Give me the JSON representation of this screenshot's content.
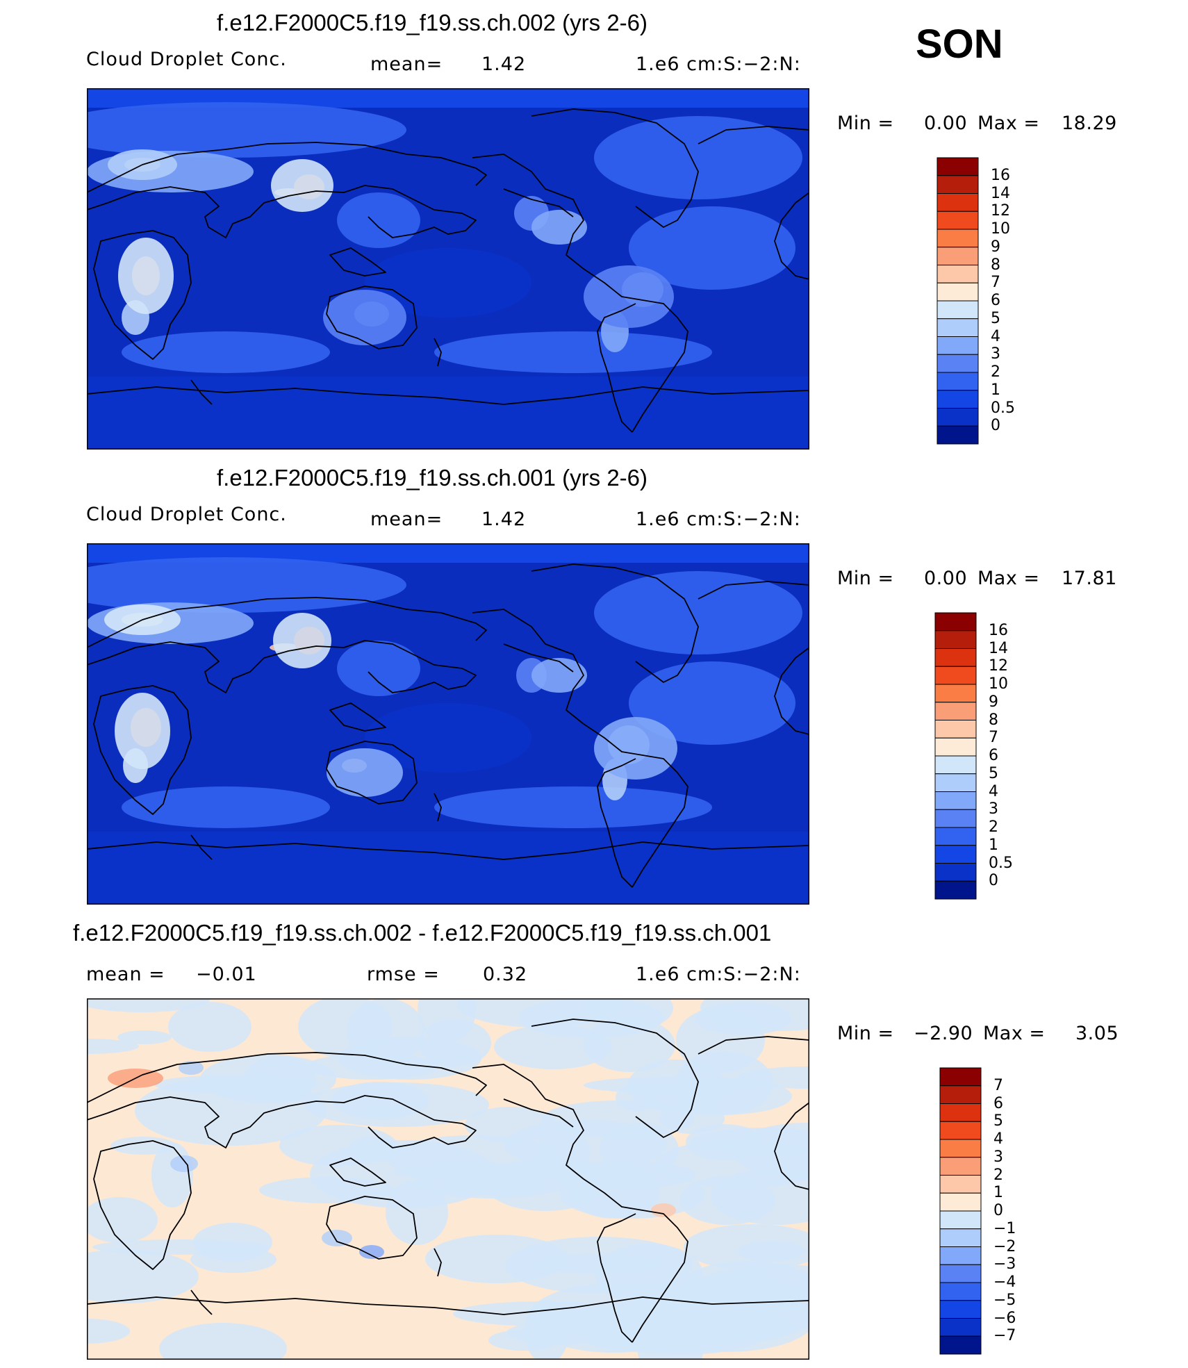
{
  "season": "SON",
  "panels": [
    {
      "title": "f.e12.F2000C5.f19_f19.ss.ch.002 (yrs 2-6)",
      "left_label": "Cloud Droplet Conc.",
      "center_label": "mean=",
      "center_value": "1.42",
      "right_label": "1.e6 cm:S:−2:N:",
      "min_label": "Min =",
      "min_value": "0.00",
      "max_label": "Max =",
      "max_value": "18.29",
      "legend_labels": [
        "16",
        "14",
        "12",
        "10",
        "9",
        "8",
        "7",
        "6",
        "5",
        "4",
        "3",
        "2",
        "1",
        "0.5",
        "0"
      ],
      "legend_colors": [
        "#8b0000",
        "#b41e0a",
        "#dc320f",
        "#f04b1e",
        "#fa7d46",
        "#fa9e78",
        "#fdc8aa",
        "#feebd7",
        "#d2e6fa",
        "#afcdfa",
        "#82a8fa",
        "#5a82f5",
        "#3262f0",
        "#1446e6",
        "#0a32c8",
        "#00148c"
      ],
      "map_base": "#0a2dbe"
    },
    {
      "title": "f.e12.F2000C5.f19_f19.ss.ch.001 (yrs 2-6)",
      "left_label": "Cloud Droplet Conc.",
      "center_label": "mean=",
      "center_value": "1.42",
      "right_label": "1.e6 cm:S:−2:N:",
      "min_label": "Min =",
      "min_value": "0.00",
      "max_label": "Max =",
      "max_value": "17.81",
      "legend_labels": [
        "16",
        "14",
        "12",
        "10",
        "9",
        "8",
        "7",
        "6",
        "5",
        "4",
        "3",
        "2",
        "1",
        "0.5",
        "0"
      ],
      "legend_colors": [
        "#8b0000",
        "#b41e0a",
        "#dc320f",
        "#f04b1e",
        "#fa7d46",
        "#fa9e78",
        "#fdc8aa",
        "#feebd7",
        "#d2e6fa",
        "#afcdfa",
        "#82a8fa",
        "#5a82f5",
        "#3262f0",
        "#1446e6",
        "#0a32c8",
        "#00148c"
      ],
      "map_base": "#0a2dbe"
    },
    {
      "title": "f.e12.F2000C5.f19_f19.ss.ch.002 - f.e12.F2000C5.f19_f19.ss.ch.001",
      "left_label": "mean =",
      "left_value": "−0.01",
      "center_label": "rmse =",
      "center_value": "0.32",
      "right_label": "1.e6 cm:S:−2:N:",
      "min_label": "Min =",
      "min_value": "−2.90",
      "max_label": "Max =",
      "max_value": "3.05",
      "legend_labels": [
        "7",
        "6",
        "5",
        "4",
        "3",
        "2",
        "1",
        "0",
        "−1",
        "−2",
        "−3",
        "−4",
        "−5",
        "−6",
        "−7"
      ],
      "legend_colors": [
        "#8b0000",
        "#b41e0a",
        "#dc320f",
        "#f04b1e",
        "#fa7d46",
        "#fa9e78",
        "#fdc8aa",
        "#feebd7",
        "#d2e6fa",
        "#afcdfa",
        "#82a8fa",
        "#5a82f5",
        "#3262f0",
        "#1446e6",
        "#0a32c8",
        "#00148c"
      ],
      "map_base": "#fde8d4"
    }
  ]
}
